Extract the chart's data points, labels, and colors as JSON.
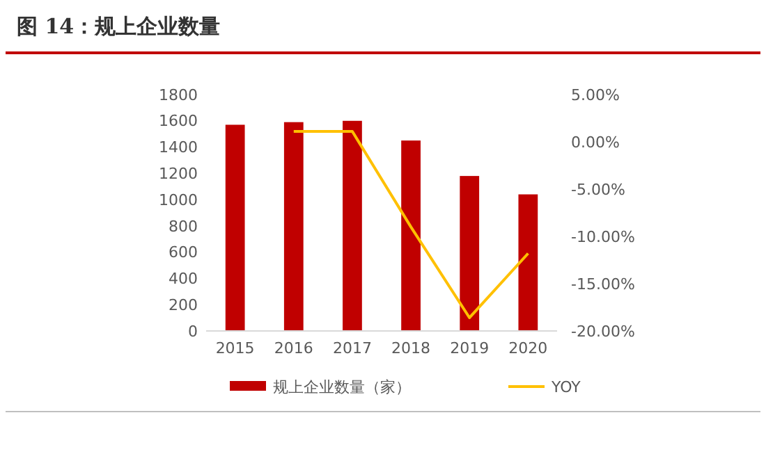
{
  "chart_data": {
    "type": "bar",
    "title": "图 14：规上企业数量",
    "categories": [
      "2015",
      "2016",
      "2017",
      "2018",
      "2019",
      "2020"
    ],
    "series": [
      {
        "name": "规上企业数量（家）",
        "color": "#c00000",
        "values": [
          1570,
          1590,
          1600,
          1450,
          1180,
          1040
        ]
      },
      {
        "name": "YOY",
        "type": "line",
        "axis": "y2",
        "color": "#ffc000",
        "marker": "none",
        "values": [
          null,
          1.1,
          1.1,
          -9.0,
          -18.6,
          -11.8
        ]
      }
    ],
    "ylim": [
      0,
      1800
    ],
    "yticks": [
      0,
      200,
      400,
      600,
      800,
      1000,
      1200,
      1400,
      1600,
      1800
    ],
    "y2lim": [
      -20,
      5
    ],
    "y2ticks": [
      {
        "value": -20,
        "label": "-20.00%"
      },
      {
        "value": -15,
        "label": "-15.00%"
      },
      {
        "value": -10,
        "label": "-10.00%"
      },
      {
        "value": -5,
        "label": "-5.00%"
      },
      {
        "value": 0,
        "label": "0.00%"
      },
      {
        "value": 5,
        "label": "5.00%"
      }
    ],
    "grid": false,
    "legend": "bottom"
  }
}
